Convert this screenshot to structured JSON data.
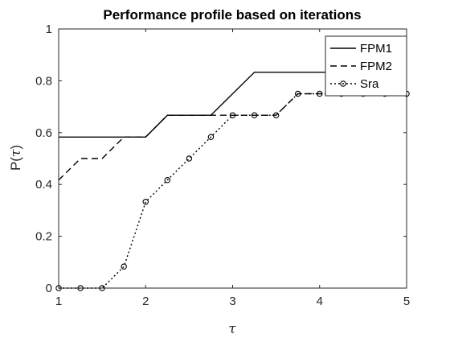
{
  "chart_data": {
    "type": "line",
    "title": "Performance profile based on iterations",
    "xlabel": "τ",
    "ylabel_main": "P(",
    "ylabel_symbol": "τ",
    "ylabel_close": ")",
    "xlim": [
      1,
      5
    ],
    "ylim": [
      0,
      1
    ],
    "xticks": [
      1,
      2,
      3,
      4,
      5
    ],
    "yticks": [
      0,
      0.2,
      0.4,
      0.6,
      0.8,
      1
    ],
    "xtick_labels": [
      "1",
      "2",
      "3",
      "4",
      "5"
    ],
    "ytick_labels": [
      "0",
      "0.2",
      "0.4",
      "0.6",
      "0.8",
      "1"
    ],
    "grid": false,
    "legend_position": "top-right",
    "series": [
      {
        "name": "FPM1",
        "style": "solid",
        "marker": "none",
        "color": "#000000",
        "x": [
          1,
          2,
          2.25,
          2.75,
          3.25,
          5
        ],
        "y": [
          0.583,
          0.583,
          0.667,
          0.667,
          0.833,
          0.833
        ]
      },
      {
        "name": "FPM2",
        "style": "dashed",
        "marker": "none",
        "color": "#000000",
        "x": [
          1,
          1.25,
          1.5,
          1.75,
          2,
          2.25,
          2.75,
          3,
          3.5,
          3.75,
          5
        ],
        "y": [
          0.417,
          0.5,
          0.5,
          0.583,
          0.583,
          0.667,
          0.667,
          0.667,
          0.667,
          0.75,
          0.75
        ]
      },
      {
        "name": "Sra",
        "style": "dotted",
        "marker": "circle",
        "color": "#000000",
        "x": [
          1,
          1.25,
          1.5,
          1.75,
          2,
          2.25,
          2.5,
          2.75,
          3,
          3.25,
          3.5,
          3.75,
          4,
          4.25,
          4.5,
          4.75,
          5
        ],
        "y": [
          0,
          0,
          0,
          0.083,
          0.333,
          0.417,
          0.5,
          0.583,
          0.667,
          0.667,
          0.667,
          0.75,
          0.75,
          0.75,
          0.75,
          0.75,
          0.75
        ]
      }
    ]
  }
}
